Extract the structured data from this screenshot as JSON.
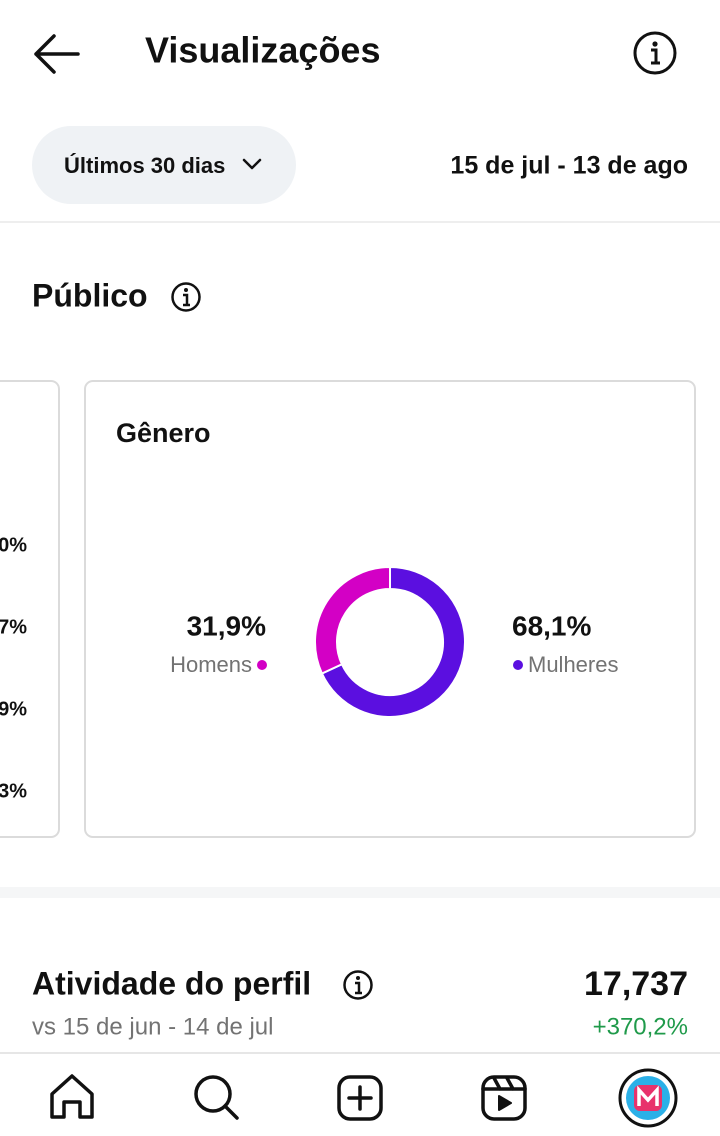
{
  "header": {
    "title": "Visualizações"
  },
  "filter": {
    "label": "Últimos 30 dias",
    "date_range": "15 de jul - 13 de ago"
  },
  "audience": {
    "title": "Público",
    "left_card": {
      "labels": [
        "0%",
        "7%",
        "9%",
        "3%"
      ]
    },
    "gender": {
      "title": "Gênero",
      "type": "donut",
      "categories": [
        "Homens",
        "Mulheres"
      ],
      "values": [
        31.9,
        68.1
      ],
      "value_labels": [
        "31,9%",
        "68,1%"
      ],
      "colors": [
        "#d300c5",
        "#5b0fe0"
      ]
    }
  },
  "activity": {
    "title": "Atividade do perfil",
    "subtitle": "vs 15 de jun - 14 de jul",
    "value": "17,737",
    "change": "+370,2%"
  }
}
